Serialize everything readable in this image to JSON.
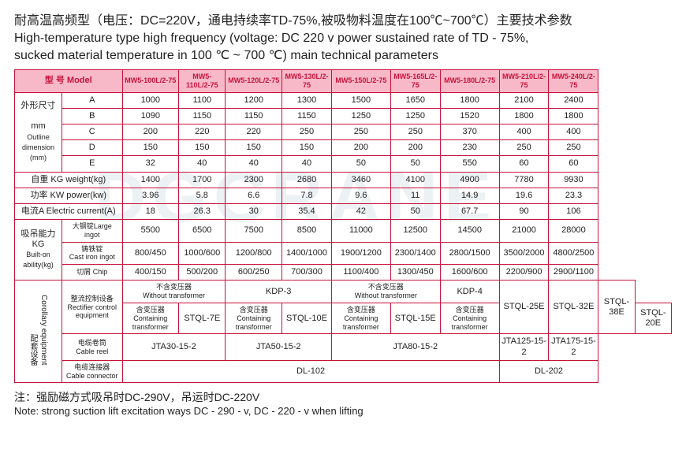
{
  "title_cn": "耐高温高频型（电压：DC=220V，通电持续率TD-75%,被吸物料温度在100℃~700℃）主要技术参数",
  "title_en1": "High-temperature type high frequency (voltage: DC 220 v power sustained rate of TD - 75%,",
  "title_en2": "sucked material temperature in 100 ℃ ~ 700 ℃) main technical parameters",
  "hdr_model": "型 号  Model",
  "models": [
    "MW5-100L/2-75",
    "MW5-110L/2-75",
    "MW5-120L/2-75",
    "MW5-130L/2-75",
    "MW5-150L/2-75",
    "MW5-165L/2-75",
    "MW5-180L/2-75",
    "MW5-210L/2-75",
    "MW5-240L/2-75"
  ],
  "outline_cn": "外形尺寸",
  "outline_mm": "mm",
  "outline_en1": "Outline dimension",
  "outline_en2": "(mm)",
  "dim_A": "A",
  "dim_B": "B",
  "dim_C": "C",
  "dim_D": "D",
  "dim_E": "E",
  "A": [
    "1000",
    "1100",
    "1200",
    "1300",
    "1500",
    "1650",
    "1800",
    "2100",
    "2400"
  ],
  "B": [
    "1090",
    "1150",
    "1150",
    "1150",
    "1250",
    "1250",
    "1520",
    "1800",
    "1800"
  ],
  "C": [
    "200",
    "220",
    "220",
    "250",
    "250",
    "250",
    "370",
    "400",
    "400"
  ],
  "D": [
    "150",
    "150",
    "150",
    "150",
    "200",
    "200",
    "230",
    "250",
    "250"
  ],
  "E": [
    "32",
    "40",
    "40",
    "40",
    "50",
    "50",
    "550",
    "60",
    "60"
  ],
  "weight_lbl": "自重 KG    weight(kg)",
  "weight": [
    "1400",
    "1700",
    "2300",
    "2680",
    "3460",
    "4100",
    "4900",
    "7780",
    "9930"
  ],
  "power_lbl": "功率 KW    power(kw)",
  "power": [
    "3.96",
    "5.8",
    "6.6",
    "7.8",
    "9.6",
    "11",
    "14.9",
    "19.6",
    "23.3"
  ],
  "current_lbl": "电流A  Electric current(A)",
  "current": [
    "18",
    "26.3",
    "30",
    "35.4",
    "42",
    "50",
    "67.7",
    "90",
    "106"
  ],
  "lift_cn": "吸吊能力",
  "lift_kg": "KG",
  "lift_en1": "Built-on",
  "lift_en2": "ability(kg)",
  "large_ingot": "大钢锭Large ingot",
  "large": [
    "5500",
    "6500",
    "7500",
    "8500",
    "11000",
    "12500",
    "14500",
    "21000",
    "28000"
  ],
  "cast_iron": "铸铁锭",
  "cast_iron_en": "Cast iron ingot",
  "cast": [
    "800/450",
    "1000/600",
    "1200/800",
    "1400/1000",
    "1900/1200",
    "2300/1400",
    "2800/1500",
    "3500/2000",
    "4800/2500"
  ],
  "chip": "切屑    Chip",
  "chipv": [
    "400/150",
    "500/200",
    "600/250",
    "700/300",
    "1100/400",
    "1300/450",
    "1600/600",
    "2200/900",
    "2900/1100"
  ],
  "corollary_cn": "配套设备",
  "corollary_en": "Corollary equipment",
  "rect_cn": "整流控制设备",
  "rect_en": "Rectifier control equipment",
  "no_trans": "不含变压器",
  "no_trans_en": "Without transformer",
  "with_trans": "含变压器",
  "with_trans_en": "Containing transformer",
  "kdp3": "KDP-3",
  "kdp4": "KDP-4",
  "stql7": "STQL-7E",
  "stql10": "STQL-10E",
  "stql15": "STQL-15E",
  "stql20": "STQL-20E",
  "stql25": "STQL-25E",
  "stql32": "STQL-32E",
  "stql38": "STQL-38E",
  "cable_reel_cn": "电缆卷筒",
  "cable_reel_en": "Cable reel",
  "jta30": "JTA30-15-2",
  "jta50": "JTA50-15-2",
  "jta80": "JTA80-15-2",
  "jta125": "JTA125-15-2",
  "jta175": "JTA175-15-2",
  "cable_conn_cn": "电缆连接器",
  "cable_conn_en": "Cable connector",
  "dl102": "DL-102",
  "dl202": "DL-202",
  "note_cn": "注：强励磁方式吸吊时DC-290V，吊运时DC-220V",
  "note_en": "Note: strong suction lift excitation ways DC - 290 - v, DC - 220 - v when lifting",
  "watermark": "DGCRANE"
}
